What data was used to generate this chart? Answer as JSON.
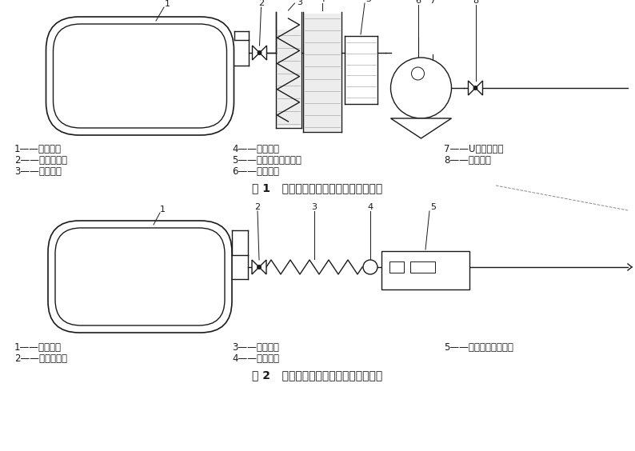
{
  "title1": "图 1   湿式气体流量计法试验装置原理图",
  "title2": "图 2   气体质量流量计法试验装置原理图",
  "labels1_col1": [
    "1——被检件；",
    "2——放空管阀；",
    "3——升温器；"
  ],
  "labels1_col2": [
    "4——增湿器；",
    "5——湿式气体流量计；",
    "6——温度计；"
  ],
  "labels1_col3": [
    "7——U型差压计；",
    "8——旁通阀。"
  ],
  "labels2_col1": [
    "1——被检件；",
    "2——放空管阀；"
  ],
  "labels2_col2": [
    "3——升温器；",
    "4——温度计；"
  ],
  "labels2_col3": [
    "5——气体质量流量计。"
  ],
  "bg_color": "#ffffff",
  "line_color": "#1a1a1a",
  "font_size": 8.5,
  "title_font_size": 10
}
